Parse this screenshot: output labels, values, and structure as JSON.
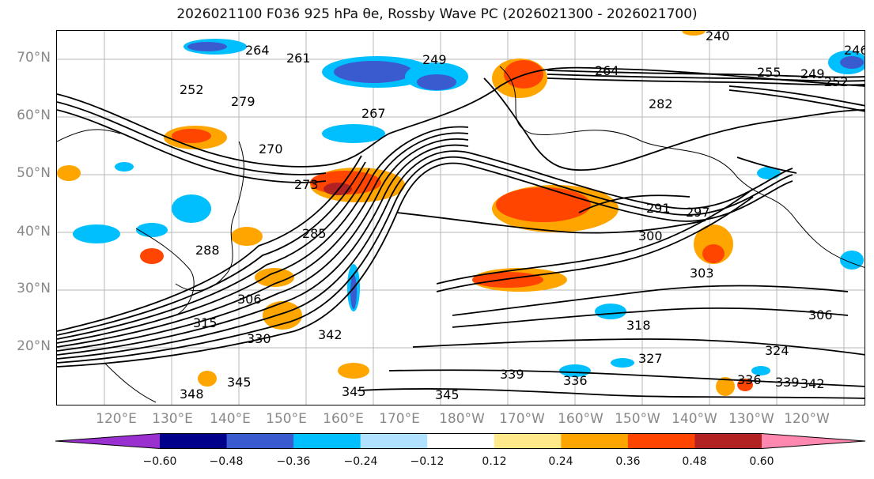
{
  "title": "2026021100 F036 925 hPa θe, Rossby Wave PC (2026021300 - 2026021700)",
  "latitude_labels": [
    "70°N",
    "60°N",
    "50°N",
    "40°N",
    "30°N",
    "20°N"
  ],
  "longitude_labels": [
    "120°E",
    "130°E",
    "140°E",
    "150°E",
    "160°E",
    "170°E",
    "180°W",
    "170°W",
    "160°W",
    "150°W",
    "140°W",
    "130°W",
    "120°W"
  ],
  "contour_labels": [
    "240",
    "246",
    "249",
    "249",
    "252",
    "252",
    "255",
    "261",
    "264",
    "264",
    "267",
    "270",
    "273",
    "279",
    "282",
    "285",
    "288",
    "291",
    "297",
    "300",
    "303",
    "306",
    "306",
    "315",
    "318",
    "324",
    "327",
    "330",
    "336",
    "336",
    "339",
    "339",
    "342",
    "342",
    "345",
    "345",
    "345",
    "348"
  ],
  "colorbar": {
    "ticks": [
      "−0.60",
      "−0.48",
      "−0.36",
      "−0.24",
      "−0.12",
      "0.12",
      "0.24",
      "0.36",
      "0.48",
      "0.60"
    ],
    "colors": [
      "#9b30d0",
      "#00008b",
      "#3a5bd0",
      "#00bfff",
      "#b0e2ff",
      "#ffffff",
      "#ffe98a",
      "#ffa500",
      "#ff4500",
      "#b22222",
      "#ff88b0"
    ]
  }
}
